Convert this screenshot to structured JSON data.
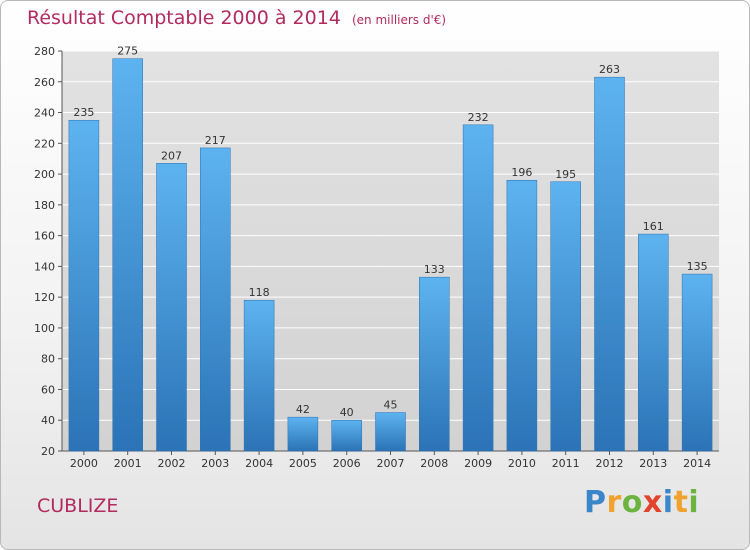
{
  "title": "Résultat Comptable 2000 à 2014",
  "subtitle": "(en milliers d'€)",
  "place": "CUBLIZE",
  "logo": {
    "letters": [
      "P",
      "r",
      "o",
      "x",
      "i",
      "t",
      "i"
    ],
    "colors": [
      "#3a86c8",
      "#f0a22e",
      "#6cb33f",
      "#e2432a",
      "#3a86c8",
      "#f0a22e",
      "#6cb33f"
    ]
  },
  "chart_data": {
    "type": "bar",
    "categories": [
      "2000",
      "2001",
      "2002",
      "2003",
      "2004",
      "2005",
      "2006",
      "2007",
      "2008",
      "2009",
      "2010",
      "2011",
      "2012",
      "2013",
      "2014"
    ],
    "values": [
      235,
      275,
      207,
      217,
      118,
      42,
      40,
      45,
      133,
      232,
      196,
      195,
      263,
      161,
      135
    ],
    "ylim": [
      20,
      280
    ],
    "yticks": [
      20,
      40,
      60,
      80,
      100,
      120,
      140,
      160,
      180,
      200,
      220,
      240,
      260,
      280
    ],
    "grid": true,
    "bar_color": "#3a8fd8"
  }
}
